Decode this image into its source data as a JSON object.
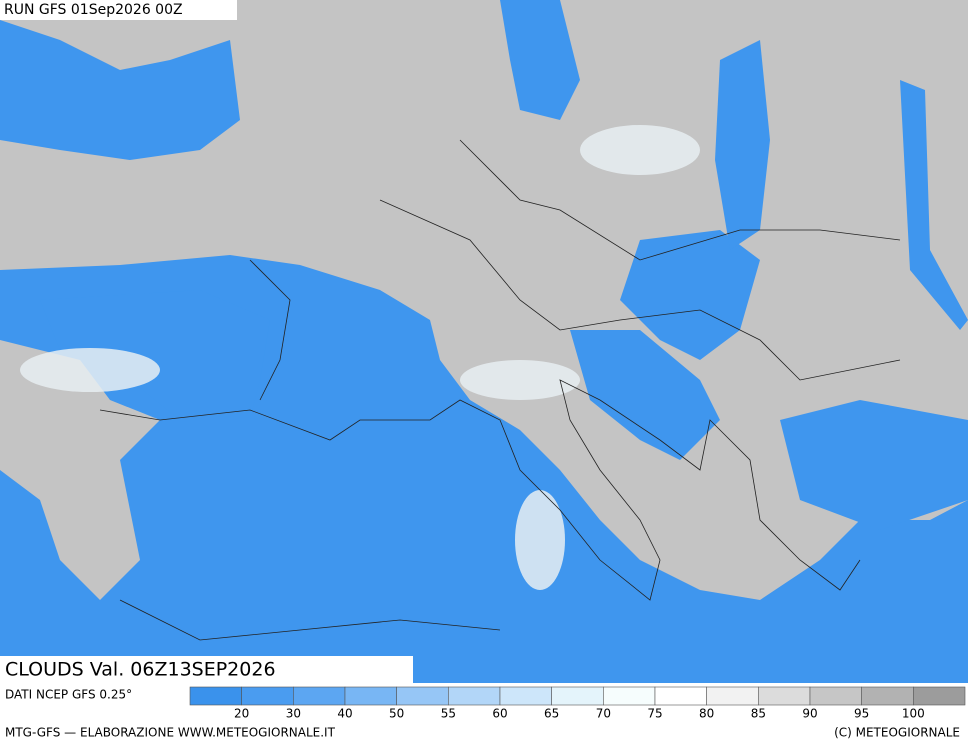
{
  "header": {
    "run": "RUN GFS 01Sep2026 00Z"
  },
  "map": {
    "label": "CLOUDS Val. 06Z13SEP2026"
  },
  "legend": {
    "source": "DATI NCEP GFS 0.25°",
    "values": [
      20,
      30,
      40,
      50,
      55,
      60,
      65,
      70,
      75,
      80,
      85,
      90,
      95,
      100
    ],
    "colors": [
      "#3a92ec",
      "#4a9cf0",
      "#5ca6f2",
      "#78b6f4",
      "#96c6f6",
      "#b2d6f8",
      "#cde6fa",
      "#e4f4fb",
      "#f6fdfd",
      "#ffffff",
      "#f2f2f2",
      "#dcdcdc",
      "#c6c6c6",
      "#b2b2b2",
      "#9c9c9c"
    ]
  },
  "footer": {
    "left": "MTG-GFS — ELABORAZIONE WWW.METEOGIORNALE.IT",
    "right": "(C) METEOGIORNALE"
  }
}
